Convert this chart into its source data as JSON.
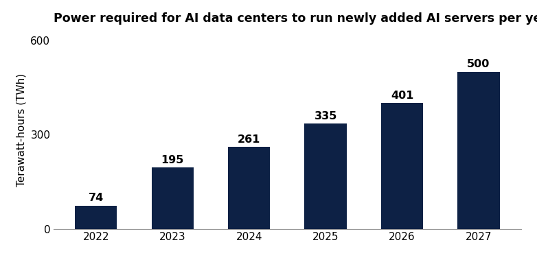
{
  "title": "Power required for AI data centers to run newly added AI servers per year",
  "categories": [
    "2022",
    "2023",
    "2024",
    "2025",
    "2026",
    "2027"
  ],
  "values": [
    74,
    195,
    261,
    335,
    401,
    500
  ],
  "bar_color": "#0d2145",
  "ylabel": "Terawatt-hours (TWh)",
  "ylim": [
    0,
    630
  ],
  "yticks": [
    0,
    300,
    600
  ],
  "title_fontsize": 12.5,
  "label_fontsize": 11,
  "tick_fontsize": 11,
  "annotation_fontsize": 11.5,
  "background_color": "#ffffff",
  "border_color": "#cccccc"
}
